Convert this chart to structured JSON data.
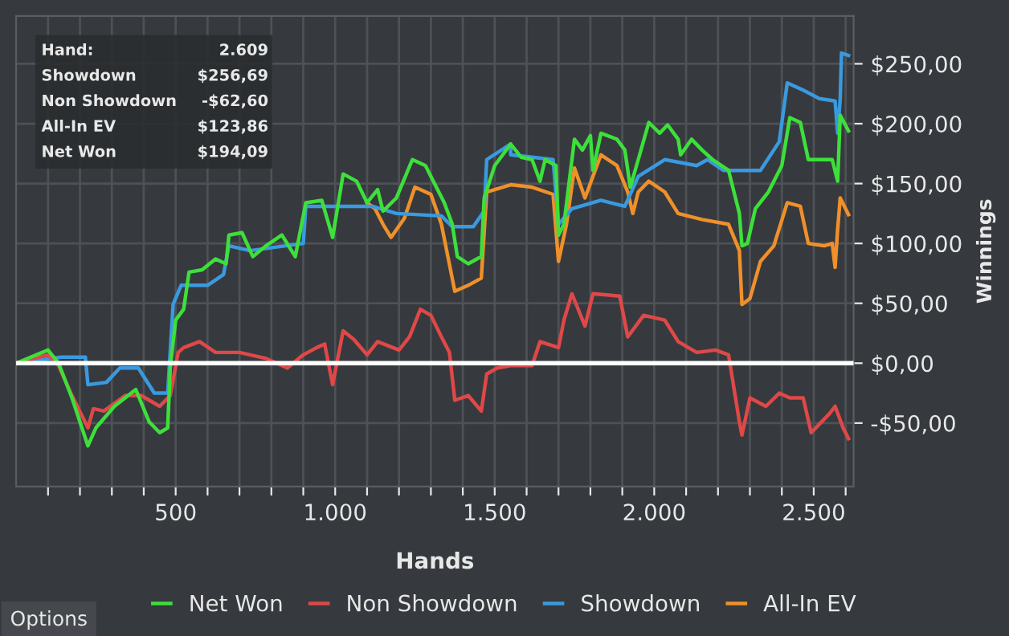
{
  "chart_data": {
    "type": "line",
    "xlabel": "Hands",
    "ylabel": "Winnings",
    "xlim": [
      0,
      2625
    ],
    "ylim": [
      -103,
      290
    ],
    "xticks": [
      {
        "value": 100,
        "label": null
      },
      {
        "value": 200,
        "label": null
      },
      {
        "value": 300,
        "label": null
      },
      {
        "value": 400,
        "label": null
      },
      500,
      {
        "value": 600,
        "label": null
      },
      {
        "value": 700,
        "label": null
      },
      {
        "value": 800,
        "label": null
      },
      {
        "value": 900,
        "label": null
      },
      {
        "value": 1000,
        "label": "1.000"
      },
      {
        "value": 1100,
        "label": null
      },
      {
        "value": 1200,
        "label": null
      },
      {
        "value": 1300,
        "label": null
      },
      {
        "value": 1400,
        "label": null
      },
      {
        "value": 1500,
        "label": "1.500"
      },
      {
        "value": 1600,
        "label": null
      },
      {
        "value": 1700,
        "label": null
      },
      {
        "value": 1800,
        "label": null
      },
      {
        "value": 1900,
        "label": null
      },
      {
        "value": 2000,
        "label": "2.000"
      },
      {
        "value": 2100,
        "label": null
      },
      {
        "value": 2200,
        "label": null
      },
      {
        "value": 2300,
        "label": null
      },
      {
        "value": 2400,
        "label": null
      },
      {
        "value": 2500,
        "label": "2.500"
      },
      {
        "value": 2600,
        "label": null
      }
    ],
    "yticks": [
      {
        "value": -50,
        "label": "-$50,00"
      },
      {
        "value": 0,
        "label": "$0,00"
      },
      {
        "value": 50,
        "label": "$50,00"
      },
      {
        "value": 100,
        "label": "$100,00"
      },
      {
        "value": 150,
        "label": "$150,00"
      },
      {
        "value": 200,
        "label": "$200,00"
      },
      {
        "value": 250,
        "label": "$250,00"
      }
    ],
    "grid": true,
    "legend": "bottom",
    "line_style": "solid",
    "ref_lines": [
      {
        "axis": "y",
        "value": 0,
        "color": "#ffffff"
      }
    ],
    "annotations": [
      "Hand:",
      "2.609",
      "Showdown",
      "$256,69",
      "Non Showdown",
      "-$62,60",
      "All-In EV",
      "$123,86",
      "Net Won",
      "$194,09",
      "Options"
    ],
    "series": [
      {
        "name": "Net Won",
        "color": "#3de03a",
        "x": [
          0,
          100,
          133,
          175,
          225,
          250,
          308,
          375,
          417,
          450,
          475,
          483,
          500,
          525,
          542,
          583,
          625,
          658,
          667,
          708,
          742,
          783,
          833,
          875,
          908,
          958,
          992,
          1025,
          1067,
          1100,
          1133,
          1150,
          1192,
          1242,
          1283,
          1317,
          1342,
          1367,
          1383,
          1417,
          1458,
          1467,
          1500,
          1550,
          1583,
          1617,
          1642,
          1658,
          1692,
          1700,
          1717,
          1750,
          1775,
          1800,
          1808,
          1833,
          1883,
          1908,
          1925,
          1950,
          1983,
          2017,
          2042,
          2075,
          2083,
          2117,
          2150,
          2183,
          2233,
          2267,
          2275,
          2292,
          2317,
          2358,
          2400,
          2425,
          2458,
          2483,
          2517,
          2558,
          2575,
          2583,
          2609
        ],
        "values": [
          0,
          11,
          0,
          -29,
          -69,
          -54,
          -36,
          -22,
          -49,
          -58,
          -54,
          -4,
          36,
          45,
          76,
          78,
          87,
          83,
          107,
          109,
          89,
          98,
          107,
          89,
          134,
          136,
          105,
          158,
          152,
          134,
          145,
          127,
          138,
          170,
          165,
          147,
          134,
          116,
          89,
          83,
          89,
          138,
          165,
          183,
          172,
          170,
          152,
          170,
          165,
          107,
          116,
          187,
          178,
          190,
          161,
          192,
          187,
          178,
          147,
          170,
          201,
          192,
          199,
          187,
          174,
          187,
          178,
          170,
          161,
          125,
          98,
          100,
          129,
          143,
          165,
          205,
          201,
          170,
          170,
          170,
          152,
          207,
          194
        ]
      },
      {
        "name": "Non Showdown",
        "color": "#e04848",
        "x": [
          0,
          100,
          133,
          175,
          225,
          242,
          275,
          342,
          392,
          450,
          483,
          508,
          525,
          575,
          625,
          700,
          783,
          850,
          900,
          942,
          967,
          992,
          1025,
          1058,
          1100,
          1133,
          1200,
          1233,
          1267,
          1300,
          1333,
          1358,
          1375,
          1417,
          1458,
          1475,
          1508,
          1550,
          1617,
          1642,
          1700,
          1717,
          1742,
          1783,
          1808,
          1892,
          1917,
          1967,
          2033,
          2075,
          2133,
          2192,
          2233,
          2267,
          2275,
          2300,
          2350,
          2392,
          2425,
          2467,
          2492,
          2550,
          2567,
          2592,
          2609
        ],
        "values": [
          0,
          7,
          -2,
          -27,
          -54,
          -38,
          -40,
          -27,
          -27,
          -36,
          -27,
          9,
          13,
          18,
          9,
          9,
          4,
          -4,
          7,
          13,
          16,
          -18,
          27,
          20,
          7,
          18,
          11,
          22,
          45,
          40,
          22,
          9,
          -31,
          -27,
          -40,
          -9,
          -4,
          -2,
          -2,
          18,
          13,
          36,
          58,
          31,
          58,
          56,
          22,
          40,
          36,
          18,
          9,
          11,
          7,
          -49,
          -60,
          -29,
          -36,
          -25,
          -29,
          -29,
          -58,
          -42,
          -36,
          -54,
          -63
        ]
      },
      {
        "name": "Showdown",
        "color": "#3a9ae0",
        "x": [
          0,
          142,
          217,
          225,
          283,
          325,
          383,
          433,
          475,
          492,
          517,
          600,
          650,
          667,
          733,
          900,
          908,
          992,
          1117,
          1192,
          1333,
          1367,
          1433,
          1467,
          1475,
          1550,
          1550,
          1617,
          1683,
          1700,
          1742,
          1833,
          1908,
          1950,
          2033,
          2133,
          2167,
          2217,
          2333,
          2392,
          2417,
          2467,
          2517,
          2567,
          2575,
          2583,
          2587,
          2609
        ],
        "values": [
          0,
          5,
          5,
          -18,
          -16,
          -4,
          -4,
          -25,
          -25,
          49,
          65,
          65,
          74,
          98,
          94,
          100,
          131,
          131,
          131,
          125,
          123,
          114,
          114,
          127,
          170,
          183,
          174,
          172,
          170,
          116,
          129,
          136,
          131,
          156,
          170,
          165,
          170,
          161,
          161,
          185,
          234,
          228,
          221,
          219,
          192,
          221,
          259,
          257
        ]
      },
      {
        "name": "All-In EV",
        "color": "#f0902a",
        "x": [
          1100,
          1125,
          1150,
          1175,
          1217,
          1250,
          1300,
          1333,
          1375,
          1417,
          1458,
          1475,
          1500,
          1550,
          1617,
          1683,
          1700,
          1725,
          1750,
          1783,
          1833,
          1883,
          1917,
          1933,
          1950,
          1983,
          2033,
          2075,
          2150,
          2233,
          2267,
          2275,
          2300,
          2333,
          2375,
          2417,
          2458,
          2483,
          2533,
          2558,
          2567,
          2575,
          2583,
          2609
        ],
        "values": [
          134,
          129,
          116,
          105,
          121,
          147,
          141,
          116,
          60,
          65,
          71,
          143,
          145,
          149,
          147,
          141,
          85,
          116,
          163,
          138,
          174,
          165,
          143,
          125,
          143,
          152,
          143,
          125,
          120,
          116,
          94,
          49,
          54,
          85,
          98,
          134,
          131,
          100,
          98,
          100,
          80,
          112,
          138,
          124
        ]
      }
    ]
  }
}
